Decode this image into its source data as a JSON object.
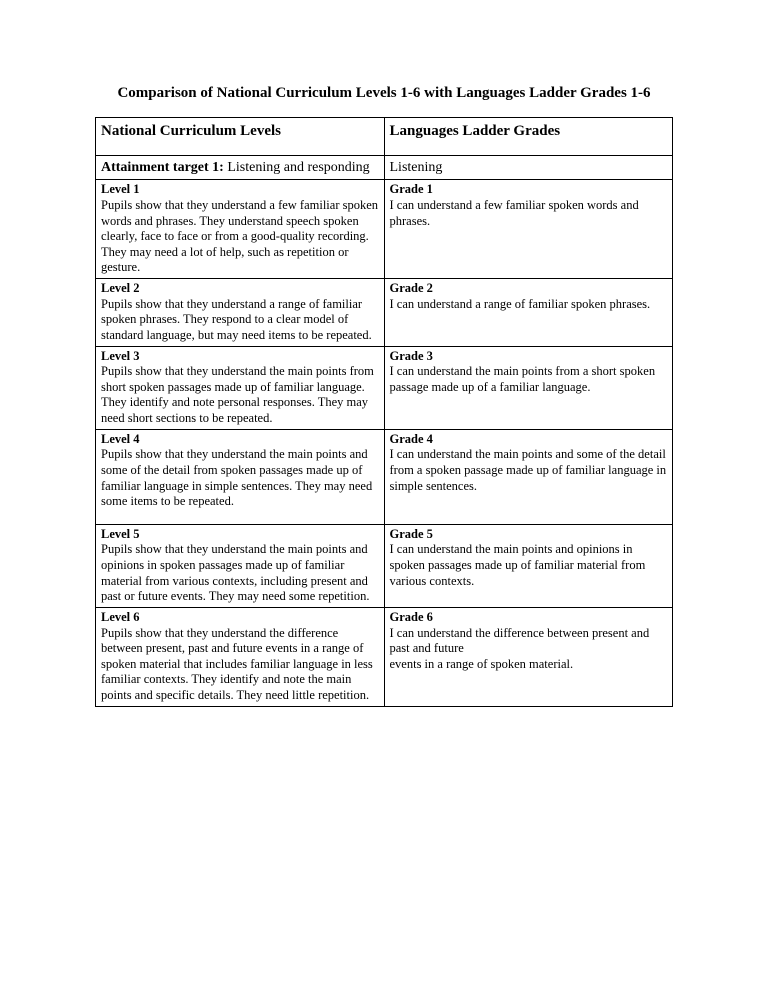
{
  "page_title": "Comparison of National Curriculum Levels 1-6 with Languages Ladder Grades 1-6",
  "table": {
    "col1_header": "National Curriculum Levels",
    "col2_header": "Languages Ladder Grades",
    "sub_col1_bold": "Attainment target 1:",
    "sub_col1_text": " Listening and responding",
    "sub_col2": "Listening",
    "rows": [
      {
        "left_title": "Level 1",
        "left_text": "Pupils show that they understand a few familiar spoken words and phrases. They understand speech spoken clearly, face to face or from a good-quality recording. They may need a lot of help, such as repetition or gesture.",
        "right_title": "Grade 1",
        "right_text": "I can understand a few familiar spoken words and phrases."
      },
      {
        "left_title": "Level 2",
        "left_text": "Pupils show that they understand a range of familiar spoken phrases. They respond to a clear model of standard language, but may need items to be repeated.",
        "right_title": "Grade 2",
        "right_text": "I can understand a range of familiar spoken phrases."
      },
      {
        "left_title": "Level 3",
        "left_text": "Pupils show that they understand the main points from short spoken passages made up of familiar language. They identify and note personal responses. They may need short sections to be repeated.",
        "right_title": "Grade 3",
        "right_text": "I can understand the main points from a short spoken passage made up of a familiar language."
      },
      {
        "left_title": "Level 4",
        "left_text": "Pupils show that they understand the main points and some of the detail from spoken passages made up of familiar language in simple sentences. They may need some items to be repeated.",
        "right_title": "Grade 4",
        "right_text": "I can understand the main points and some of the detail from a spoken passage made up of familiar language in\nsimple sentences."
      },
      {
        "left_title": "Level 5",
        "left_text": "Pupils show that they understand the main points and opinions in spoken passages made up of familiar material from various contexts, including present and past or future events. They may need some repetition.",
        "right_title": "Grade 5",
        "right_text": "I can understand the main points and opinions in spoken passages made up of familiar material from various contexts."
      },
      {
        "left_title": "Level 6",
        "left_text": "Pupils show that they understand the difference between present, past and future events in a range of spoken material that includes familiar language in less familiar contexts. They identify and note the main points and specific details. They need little repetition.",
        "right_title": "Grade 6",
        "right_text": "I can understand the difference between present and past and future\nevents in a range of spoken material."
      }
    ]
  },
  "styling": {
    "page_bg": "#ffffff",
    "text_color": "#000000",
    "border_color": "#000000",
    "title_fontsize": 15,
    "header_fontsize": 15,
    "subheader_fontsize": 14,
    "body_fontsize": 12.5,
    "font_family": "Times New Roman"
  }
}
